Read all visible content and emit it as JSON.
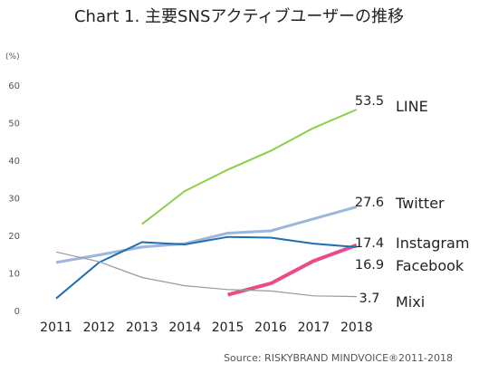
{
  "chart_data": {
    "type": "line",
    "title": "Chart 1. 主要SNSアクティブユーザーの推移",
    "unit_label": "(%)",
    "xlabel": "",
    "ylabel": "",
    "ylim": [
      0,
      60
    ],
    "yticks": [
      "0",
      "10",
      "20",
      "30",
      "40",
      "50",
      "60"
    ],
    "x": [
      "2011",
      "2012",
      "2013",
      "2014",
      "2015",
      "2016",
      "2017",
      "2018"
    ],
    "grid": false,
    "legend": "right, labels at line ends",
    "series": [
      {
        "name": "LINE",
        "color": "#8cce4a",
        "width": 2,
        "values": [
          null,
          null,
          23.0,
          31.8,
          37.5,
          42.5,
          48.6,
          53.5
        ],
        "end_label": "53.5"
      },
      {
        "name": "Twitter",
        "color": "#9cb6dc",
        "width": 3,
        "values": [
          12.8,
          14.8,
          16.9,
          17.8,
          20.6,
          21.2,
          24.4,
          27.6
        ],
        "end_label": "27.6"
      },
      {
        "name": "Instagram",
        "color": "#ea4c89",
        "width": 4,
        "values": [
          null,
          null,
          null,
          null,
          4.2,
          7.2,
          13.2,
          17.4
        ],
        "end_label": "17.4"
      },
      {
        "name": "Facebook",
        "color": "#1f6eb0",
        "width": 2,
        "values": [
          3.2,
          12.8,
          18.2,
          17.6,
          19.6,
          19.4,
          17.8,
          16.9
        ],
        "end_label": "16.9"
      },
      {
        "name": "Mixi",
        "color": "#9a9a9a",
        "width": 1.2,
        "values": [
          15.6,
          13.0,
          8.8,
          6.6,
          5.6,
          5.2,
          3.9,
          3.7
        ],
        "end_label": "3.7"
      }
    ],
    "source": "Source: RISKYBRAND MINDVOICE®2011-2018"
  }
}
